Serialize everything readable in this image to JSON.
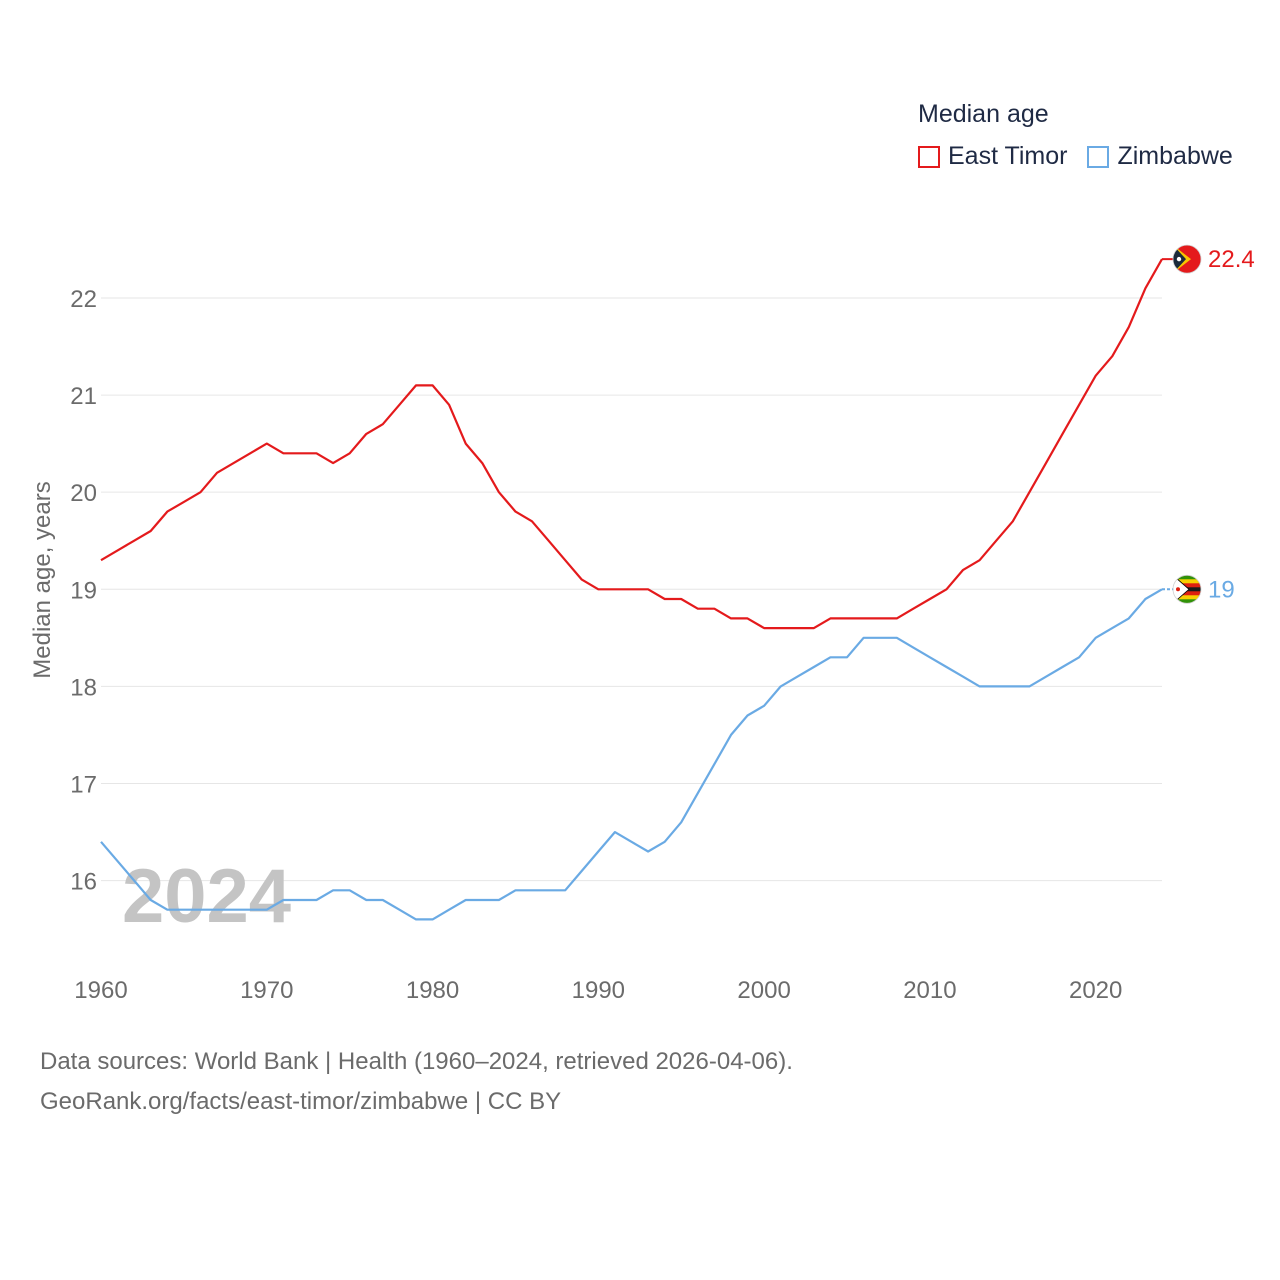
{
  "chart_data": {
    "type": "line",
    "ylabel": "Median age, years",
    "xlabel": "",
    "year_watermark": "2024",
    "legend_title": "Median age",
    "xlim": [
      1960,
      2024
    ],
    "ylim": [
      15.1,
      22.7
    ],
    "x_ticks": [
      1960,
      1970,
      1980,
      1990,
      2000,
      2010,
      2020
    ],
    "y_ticks": [
      16,
      17,
      18,
      19,
      20,
      21,
      22
    ],
    "x": [
      1960,
      1961,
      1962,
      1963,
      1964,
      1965,
      1966,
      1967,
      1968,
      1969,
      1970,
      1971,
      1972,
      1973,
      1974,
      1975,
      1976,
      1977,
      1978,
      1979,
      1980,
      1981,
      1982,
      1983,
      1984,
      1985,
      1986,
      1987,
      1988,
      1989,
      1990,
      1991,
      1992,
      1993,
      1994,
      1995,
      1996,
      1997,
      1998,
      1999,
      2000,
      2001,
      2002,
      2003,
      2004,
      2005,
      2006,
      2007,
      2008,
      2009,
      2010,
      2011,
      2012,
      2013,
      2014,
      2015,
      2016,
      2017,
      2018,
      2019,
      2020,
      2021,
      2022,
      2023,
      2024
    ],
    "series": [
      {
        "name": "East Timor",
        "color": "#e41a1c",
        "end_label": "22.4",
        "values": [
          19.3,
          19.4,
          19.5,
          19.6,
          19.8,
          19.9,
          20.0,
          20.2,
          20.3,
          20.4,
          20.5,
          20.4,
          20.4,
          20.4,
          20.3,
          20.4,
          20.6,
          20.7,
          20.9,
          21.1,
          21.1,
          20.9,
          20.5,
          20.3,
          20.0,
          19.8,
          19.7,
          19.5,
          19.3,
          19.1,
          19.0,
          19.0,
          19.0,
          19.0,
          18.9,
          18.9,
          18.8,
          18.8,
          18.7,
          18.7,
          18.6,
          18.6,
          18.6,
          18.6,
          18.7,
          18.7,
          18.7,
          18.7,
          18.7,
          18.8,
          18.9,
          19.0,
          19.2,
          19.3,
          19.5,
          19.7,
          20.0,
          20.3,
          20.6,
          20.9,
          21.2,
          21.4,
          21.7,
          22.1,
          22.4
        ]
      },
      {
        "name": "Zimbabwe",
        "color": "#6aaae4",
        "end_label": "19",
        "values": [
          16.4,
          16.2,
          16.0,
          15.8,
          15.7,
          15.7,
          15.7,
          15.7,
          15.7,
          15.7,
          15.7,
          15.8,
          15.8,
          15.8,
          15.9,
          15.9,
          15.8,
          15.8,
          15.7,
          15.6,
          15.6,
          15.7,
          15.8,
          15.8,
          15.8,
          15.9,
          15.9,
          15.9,
          15.9,
          16.1,
          16.3,
          16.5,
          16.4,
          16.3,
          16.4,
          16.6,
          16.9,
          17.2,
          17.5,
          17.7,
          17.8,
          18.0,
          18.1,
          18.2,
          18.3,
          18.3,
          18.5,
          18.5,
          18.5,
          18.4,
          18.3,
          18.2,
          18.1,
          18.0,
          18.0,
          18.0,
          18.0,
          18.1,
          18.2,
          18.3,
          18.5,
          18.6,
          18.7,
          18.9,
          19.0
        ]
      }
    ]
  },
  "footer": {
    "line1": "Data sources: World Bank | Health (1960–2024, retrieved 2026-04-06).",
    "line2": "GeoRank.org/facts/east-timor/zimbabwe | CC BY"
  },
  "colors": {
    "grid": "#e6e6e6",
    "tick_text": "#6b6b6b",
    "watermark": "#c4c4c4",
    "flag_east_timor_dark": "#1b2a3b",
    "flag_zimbabwe_black": "#1a1a1a"
  }
}
